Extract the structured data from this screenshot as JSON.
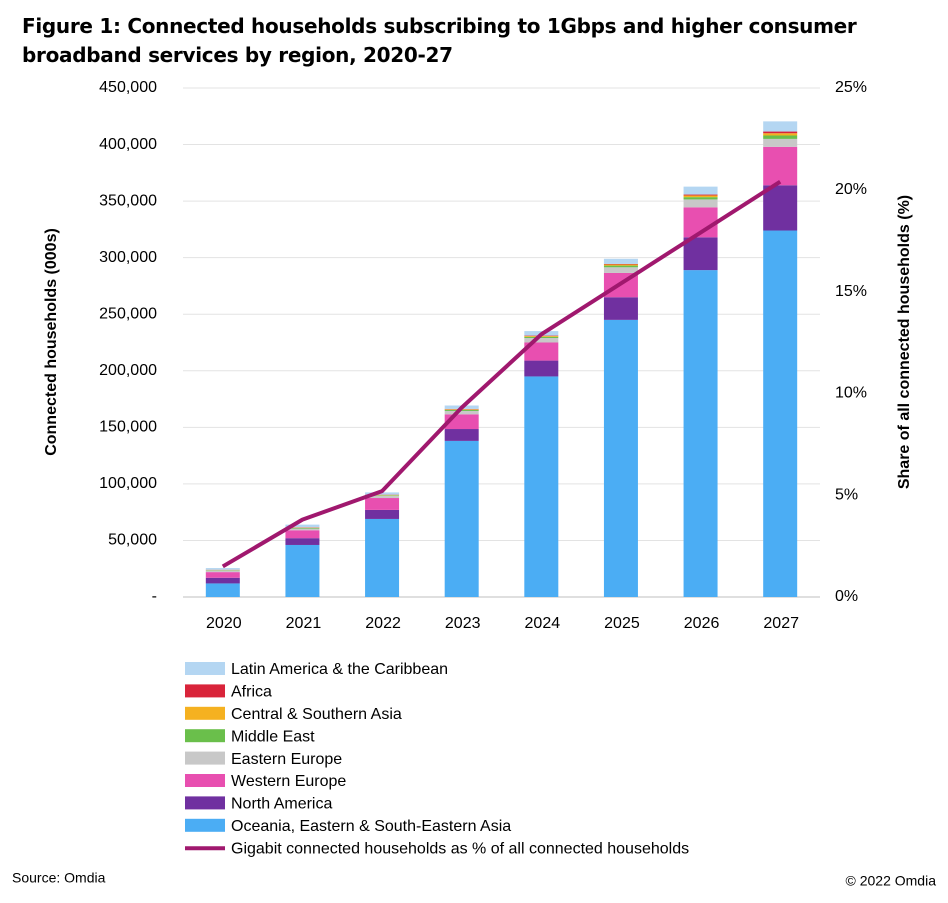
{
  "chart_data": {
    "type": "stacked_bar_line",
    "title": "Figure 1: Connected households subscribing to 1Gbps and higher consumer broadband services by region, 2020-27",
    "y_label": "Connected households (000s)",
    "y2_label": "Share of all connected households (%)",
    "source": "Source: Omdia",
    "copyright": "© 2022 Omdia",
    "categories": [
      "2020",
      "2021",
      "2022",
      "2023",
      "2024",
      "2025",
      "2026",
      "2027"
    ],
    "ylim": [
      0,
      450000
    ],
    "yticks": [
      {
        "value": 0,
        "label": "-"
      },
      {
        "value": 50000,
        "label": "50,000"
      },
      {
        "value": 100000,
        "label": "100,000"
      },
      {
        "value": 150000,
        "label": "150,000"
      },
      {
        "value": 200000,
        "label": "200,000"
      },
      {
        "value": 250000,
        "label": "250,000"
      },
      {
        "value": 300000,
        "label": "300,000"
      },
      {
        "value": 350000,
        "label": "350,000"
      },
      {
        "value": 400000,
        "label": "400,000"
      },
      {
        "value": 450000,
        "label": "450,000"
      }
    ],
    "y2lim": [
      0,
      25
    ],
    "y2ticks": [
      {
        "value": 0,
        "label": "0%"
      },
      {
        "value": 5,
        "label": "5%"
      },
      {
        "value": 10,
        "label": "10%"
      },
      {
        "value": 15,
        "label": "15%"
      },
      {
        "value": 20,
        "label": "20%"
      },
      {
        "value": 25,
        "label": "25%"
      }
    ],
    "grid": true,
    "series": [
      {
        "name": "Oceania, Eastern & South-Eastern Asia",
        "color": "#4badf4",
        "values": [
          12000,
          46000,
          69000,
          138000,
          195000,
          245000,
          289000,
          324000
        ]
      },
      {
        "name": "North America",
        "color": "#7030a0",
        "values": [
          5000,
          6000,
          8000,
          10500,
          14000,
          20000,
          29000,
          40000
        ]
      },
      {
        "name": "Western Europe",
        "color": "#e84fb0",
        "values": [
          5000,
          7000,
          10500,
          13000,
          16000,
          21500,
          26500,
          34000
        ]
      },
      {
        "name": "Eastern Europe",
        "color": "#c8c8c8",
        "values": [
          1500,
          1500,
          2000,
          3000,
          4000,
          5000,
          7000,
          7000
        ]
      },
      {
        "name": "Middle East",
        "color": "#6abf4b",
        "values": [
          300,
          500,
          500,
          1000,
          1000,
          1500,
          2000,
          3000
        ]
      },
      {
        "name": "Central & Southern Asia",
        "color": "#f5b120",
        "values": [
          200,
          300,
          300,
          500,
          700,
          1000,
          1500,
          2000
        ]
      },
      {
        "name": "Africa",
        "color": "#d9243a",
        "values": [
          100,
          200,
          200,
          300,
          400,
          500,
          800,
          1500
        ]
      },
      {
        "name": "Latin America & the Caribbean",
        "color": "#b4d6f2",
        "values": [
          1500,
          2500,
          2000,
          3000,
          4000,
          4500,
          7000,
          9000
        ]
      },
      {
        "name": "Gigabit connected households as % of all connected households",
        "color": "#a0186e",
        "type": "line",
        "axis": "y2",
        "values": [
          1.5,
          3.8,
          5.2,
          9.3,
          12.9,
          15.4,
          17.9,
          20.4
        ]
      }
    ]
  }
}
